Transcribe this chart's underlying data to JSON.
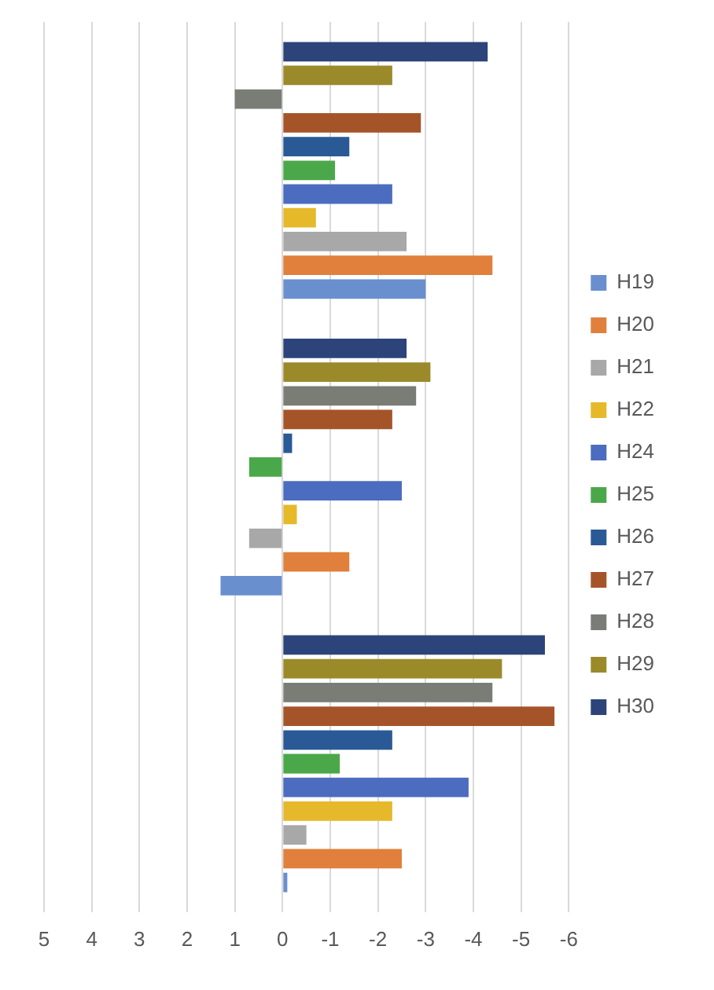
{
  "chart_data": {
    "type": "bar",
    "orientation": "horizontal",
    "categories": [
      null,
      null,
      null
    ],
    "series": [
      {
        "name": "H19",
        "color": "#6a8fcf",
        "values": [
          -3.0,
          1.3,
          -0.1
        ]
      },
      {
        "name": "H20",
        "color": "#e0803c",
        "values": [
          -4.4,
          -1.4,
          -2.5
        ]
      },
      {
        "name": "H21",
        "color": "#a8a8a8",
        "values": [
          -2.6,
          0.7,
          -0.5
        ]
      },
      {
        "name": "H22",
        "color": "#e6b92a",
        "values": [
          -0.7,
          -0.3,
          -2.3
        ]
      },
      {
        "name": "H24",
        "color": "#4c6cc0",
        "values": [
          -2.3,
          -2.5,
          -3.9
        ]
      },
      {
        "name": "H25",
        "color": "#4aa84a",
        "values": [
          -1.1,
          0.7,
          -1.2
        ]
      },
      {
        "name": "H26",
        "color": "#2a5a96",
        "values": [
          -1.4,
          -0.2,
          -2.3
        ]
      },
      {
        "name": "H27",
        "color": "#a5542a",
        "values": [
          -2.9,
          -2.3,
          -5.7
        ]
      },
      {
        "name": "H28",
        "color": "#7a7d76",
        "values": [
          1.0,
          -2.8,
          -4.4
        ]
      },
      {
        "name": "H29",
        "color": "#9a8a2a",
        "values": [
          -2.3,
          -3.1,
          -4.6
        ]
      },
      {
        "name": "H30",
        "color": "#2c4479",
        "values": [
          -4.3,
          -2.6,
          -5.5
        ]
      }
    ],
    "xlim": [
      5,
      -6
    ],
    "xticks": [
      5,
      4,
      3,
      2,
      1,
      0,
      -1,
      -2,
      -3,
      -4,
      -5,
      -6
    ],
    "grid": "x",
    "legend": "right"
  }
}
